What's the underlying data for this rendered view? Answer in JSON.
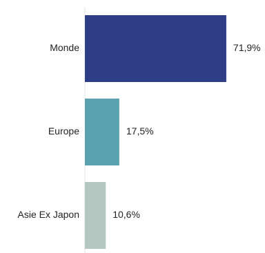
{
  "chart_data": {
    "type": "bar",
    "orientation": "horizontal",
    "categories": [
      "Monde",
      "Europe",
      "Asie Ex Japon"
    ],
    "values": [
      71.9,
      17.5,
      10.6
    ],
    "value_labels": [
      "71,9%",
      "17,5%",
      "10,6%"
    ],
    "unit": "%",
    "colors": [
      "#2e3d87",
      "#5aa2ad",
      "#b3c6bf"
    ],
    "xlim": [
      0,
      100
    ],
    "grid": false,
    "axis_line_color": "#e6e6e6",
    "title": "",
    "xlabel": "",
    "ylabel": ""
  }
}
